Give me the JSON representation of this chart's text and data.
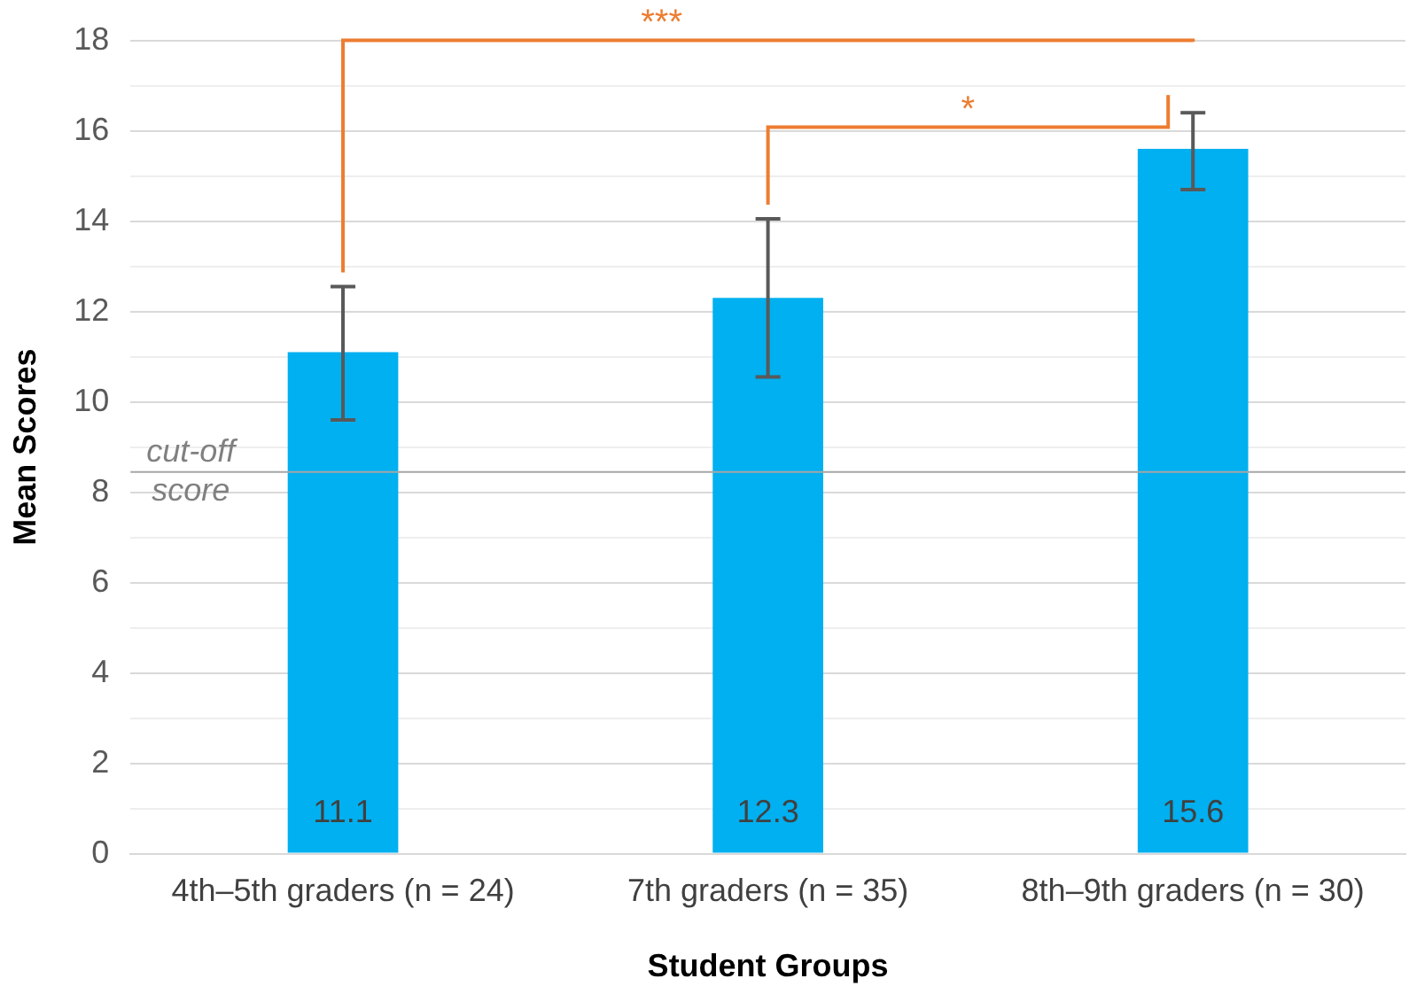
{
  "chart_data": {
    "type": "bar",
    "xlabel": "Student Groups",
    "ylabel": "Mean Scores",
    "categories": [
      "4th–5th graders (n = 24)",
      "7th graders (n = 35)",
      "8th–9th graders (n = 30)"
    ],
    "values": [
      11.1,
      12.3,
      15.6
    ],
    "color": "#00b0f0",
    "errors": [
      [
        9.6,
        12.55
      ],
      [
        10.55,
        14.05
      ],
      [
        14.7,
        16.4
      ]
    ],
    "data_labels": true,
    "ylim": [
      0,
      18
    ],
    "yticks": [
      0,
      {
        "value": 1,
        "label": null
      },
      2,
      {
        "value": 3,
        "label": null
      },
      4,
      {
        "value": 5,
        "label": null
      },
      6,
      {
        "value": 7,
        "label": null
      },
      8,
      {
        "value": 9,
        "label": null
      },
      10,
      {
        "value": 11,
        "label": null
      },
      12,
      {
        "value": 13,
        "label": null
      },
      14,
      {
        "value": 15,
        "label": null
      },
      16,
      {
        "value": 17,
        "label": null
      },
      18
    ],
    "grid": "y",
    "ref_lines": [
      {
        "axis": "y",
        "value": 8.45,
        "label": "cut-off score",
        "color": "#a6a6a6"
      }
    ],
    "annotations": [
      "***",
      "*"
    ]
  }
}
